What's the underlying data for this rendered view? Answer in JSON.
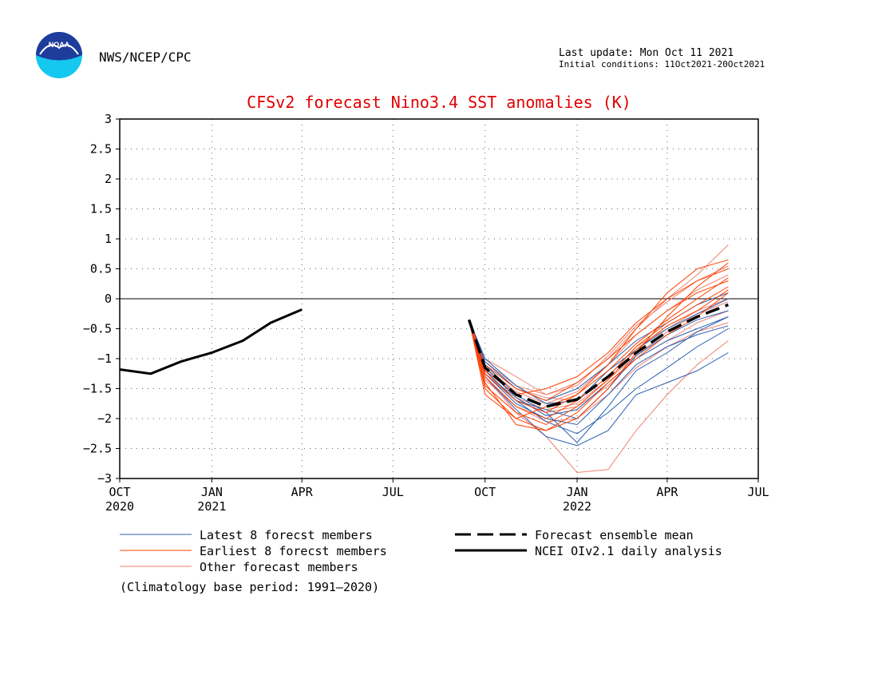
{
  "header": {
    "org": "NWS/NCEP/CPC",
    "logo_text": "NOAA",
    "last_update": "Last update: Mon Oct 11 2021",
    "initial_conditions": "Initial conditions: 11Oct2021-20Oct2021"
  },
  "colors": {
    "title": "#e00000",
    "latest": "#2a5fb0",
    "earliest": "#ff4000",
    "other": "#f08070",
    "mean": "#000000",
    "observed": "#000000",
    "logo_top": "#1e3c9c",
    "logo_bottom": "#14c8f0"
  },
  "chart_data": {
    "type": "line",
    "title": "CFSv2 forecast Nino3.4 SST anomalies (K)",
    "xlabel": "",
    "ylabel": "",
    "ylim": [
      -3,
      3
    ],
    "yticks": [
      "3",
      "2.5",
      "2",
      "1.5",
      "1",
      "0.5",
      "0",
      "−0.5",
      "−1",
      "−1.5",
      "−2",
      "−2.5",
      "−3"
    ],
    "ytick_values": [
      3,
      2.5,
      2,
      1.5,
      1,
      0.5,
      0,
      -0.5,
      -1,
      -1.5,
      -2,
      -2.5,
      -3
    ],
    "xlim": [
      "2020-10-01",
      "2022-07-01"
    ],
    "xticks": [
      {
        "date": "2020-10-01",
        "label": "OCT",
        "year": "2020"
      },
      {
        "date": "2021-01-01",
        "label": "JAN",
        "year": "2021"
      },
      {
        "date": "2021-04-01",
        "label": "APR",
        "year": ""
      },
      {
        "date": "2021-07-01",
        "label": "JUL",
        "year": ""
      },
      {
        "date": "2021-10-01",
        "label": "OCT",
        "year": ""
      },
      {
        "date": "2022-01-01",
        "label": "JAN",
        "year": "2022"
      },
      {
        "date": "2022-04-01",
        "label": "APR",
        "year": ""
      },
      {
        "date": "2022-07-01",
        "label": "JUL",
        "year": ""
      }
    ],
    "grid": true,
    "zero_line": true,
    "legend": [
      {
        "label": "Latest 8 forecst members",
        "key": "latest"
      },
      {
        "label": "Earliest 8 forecst members",
        "key": "earliest"
      },
      {
        "label": "Other forecast members",
        "key": "other"
      },
      {
        "label": "Forecast ensemble mean",
        "key": "mean"
      },
      {
        "label": "NCEI OIv2.1 daily analysis",
        "key": "observed"
      }
    ],
    "footnote": "(Climatology base period: 1991—2020)",
    "observed": {
      "name": "NCEI OIv2.1 daily analysis",
      "x": [
        "2020-10-01",
        "2020-11-01",
        "2020-12-01",
        "2021-01-01",
        "2021-02-01",
        "2021-03-01",
        "2021-04-01"
      ],
      "y": [
        -1.18,
        -1.25,
        -1.05,
        -0.9,
        -0.7,
        -0.4,
        -0.18
      ]
    },
    "ensemble_mean": {
      "name": "Forecast ensemble mean",
      "x": [
        "2021-09-15",
        "2021-10-01",
        "2021-11-01",
        "2021-12-01",
        "2022-01-01",
        "2022-02-01",
        "2022-03-01",
        "2022-04-01",
        "2022-05-01",
        "2022-06-01"
      ],
      "y": [
        -0.35,
        -1.15,
        -1.6,
        -1.8,
        -1.68,
        -1.3,
        -0.9,
        -0.55,
        -0.3,
        -0.1
      ]
    },
    "member_x": [
      "2021-09-15",
      "2021-10-01",
      "2021-11-01",
      "2021-12-01",
      "2022-01-01",
      "2022-02-01",
      "2022-03-01",
      "2022-04-01",
      "2022-05-01",
      "2022-06-01"
    ],
    "latest_members": [
      [
        -0.35,
        -1.2,
        -1.7,
        -2.05,
        -2.25,
        -1.9,
        -1.5,
        -1.15,
        -0.8,
        -0.5
      ],
      [
        -0.35,
        -1.1,
        -1.6,
        -1.9,
        -2.4,
        -1.8,
        -1.2,
        -0.9,
        -0.55,
        -0.3
      ],
      [
        -0.35,
        -1.3,
        -1.85,
        -2.3,
        -2.45,
        -2.2,
        -1.6,
        -1.4,
        -1.2,
        -0.9
      ],
      [
        -0.35,
        -1.05,
        -1.5,
        -1.7,
        -1.5,
        -1.1,
        -0.7,
        -0.4,
        -0.1,
        0.1
      ],
      [
        -0.35,
        -1.15,
        -1.65,
        -1.95,
        -1.85,
        -1.4,
        -1.0,
        -0.7,
        -0.5,
        -0.3
      ],
      [
        -0.35,
        -1.25,
        -1.75,
        -2.0,
        -2.1,
        -1.6,
        -1.1,
        -0.8,
        -0.6,
        -0.45
      ],
      [
        -0.35,
        -1.0,
        -1.45,
        -1.75,
        -1.7,
        -1.2,
        -0.85,
        -0.5,
        -0.25,
        0.0
      ],
      [
        -0.35,
        -1.2,
        -1.7,
        -1.85,
        -2.0,
        -1.5,
        -0.95,
        -0.6,
        -0.35,
        -0.2
      ]
    ],
    "earliest_members": [
      [
        -0.35,
        -1.4,
        -2.1,
        -2.2,
        -2.0,
        -1.5,
        -0.9,
        -0.3,
        0.2,
        0.6
      ],
      [
        -0.35,
        -1.6,
        -2.0,
        -1.8,
        -1.6,
        -1.1,
        -0.5,
        0.1,
        0.5,
        0.65
      ],
      [
        -0.35,
        -1.2,
        -1.6,
        -1.5,
        -1.3,
        -0.9,
        -0.4,
        0.0,
        0.3,
        0.5
      ],
      [
        -0.35,
        -1.1,
        -1.5,
        -1.7,
        -1.4,
        -1.0,
        -0.6,
        -0.2,
        0.1,
        0.3
      ],
      [
        -0.35,
        -1.5,
        -2.0,
        -2.2,
        -1.9,
        -1.4,
        -1.0,
        -0.6,
        -0.3,
        0.1
      ],
      [
        -0.35,
        -1.3,
        -1.8,
        -2.0,
        -1.7,
        -1.3,
        -0.8,
        -0.4,
        -0.1,
        0.2
      ],
      [
        -0.35,
        -1.25,
        -1.7,
        -1.9,
        -1.6,
        -1.2,
        -0.75,
        -0.35,
        0.0,
        0.35
      ],
      [
        -0.35,
        -1.45,
        -1.9,
        -2.1,
        -1.8,
        -1.35,
        -0.85,
        -0.45,
        -0.2,
        0.15
      ]
    ],
    "other_members": [
      [
        -0.35,
        -1.1,
        -1.5,
        -1.65,
        -1.7,
        -1.3,
        -0.8,
        -0.5,
        -0.2,
        0.0
      ],
      [
        -0.35,
        -1.3,
        -1.9,
        -2.3,
        -2.9,
        -2.85,
        -2.2,
        -1.6,
        -1.1,
        -0.7
      ],
      [
        -0.35,
        -1.0,
        -1.3,
        -1.6,
        -1.4,
        -1.0,
        -0.5,
        0.0,
        0.4,
        0.9
      ],
      [
        -0.35,
        -1.2,
        -1.7,
        -1.9,
        -1.8,
        -1.45,
        -1.0,
        -0.7,
        -0.4,
        -0.2
      ],
      [
        -0.35,
        -1.15,
        -1.55,
        -1.75,
        -1.55,
        -1.1,
        -0.6,
        -0.2,
        0.15,
        0.4
      ],
      [
        -0.35,
        -1.35,
        -1.8,
        -2.05,
        -2.0,
        -1.6,
        -1.15,
        -0.8,
        -0.55,
        -0.4
      ],
      [
        -0.35,
        -1.05,
        -1.45,
        -1.6,
        -1.45,
        -0.95,
        -0.45,
        -0.05,
        0.3,
        0.55
      ],
      [
        -0.35,
        -1.25,
        -1.65,
        -1.85,
        -1.75,
        -1.35,
        -0.95,
        -0.55,
        -0.25,
        -0.05
      ]
    ]
  }
}
